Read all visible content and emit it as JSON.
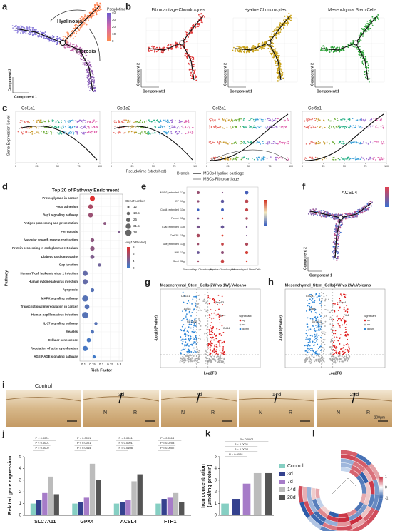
{
  "panel_letters": [
    "a",
    "b",
    "c",
    "d",
    "e",
    "f",
    "g",
    "h",
    "i",
    "j",
    "k",
    "l"
  ],
  "panels": {
    "a": {
      "annotations": [
        "Hyalinosis",
        "Fibrosis"
      ],
      "legend_title": "Pseudotime",
      "legend_ticks": [
        0,
        10,
        20,
        30,
        40
      ],
      "xlabel": "Component 1",
      "ylabel": "Component 2"
    },
    "b": {
      "titles": [
        "Fibrocartilage Chondrocytes",
        "Hyaline Chondrocytes",
        "Mesenchymal Stem Cells"
      ],
      "colors": [
        "#e03a3a",
        "#c9a21a",
        "#2fa33a"
      ],
      "xlabel": "Component 1",
      "ylabel": "Component 2"
    },
    "c": {
      "titles": [
        "Col1a1",
        "Col1a2",
        "Col2a1",
        "Col6a1"
      ],
      "ylabel": "Gene Expression Level",
      "xlabel": "Pseudotime (stretched)",
      "xticks": [
        0,
        25,
        50,
        75,
        100
      ],
      "legend_title": "Branch",
      "legend": [
        "MSCs-Hyaline cartilage",
        "MSCs-Fibrocartilage"
      ]
    },
    "e": {
      "rows": [
        "MAD2_extended (17g)",
        "EP (13g)",
        "Cnot4_extended (13g)",
        "Foxm1 (15g)",
        "E2f6_extended (13g)",
        "Creb3l1 (15g)",
        "Maff_extended (17g)",
        "Hlf4 (13g)",
        "Sox9 (38g)"
      ],
      "columns": [
        "Fibrocartilage Chondrocytes",
        "Hyaline Chondrocytes",
        "Mesenchymal Stem Cells"
      ]
    },
    "f": {
      "title": "ACSL4",
      "xlabel": "Component 1",
      "ylabel": "Component 2"
    },
    "g": {
      "title": "Mesenchymal_Stem_Cells(2W vs 1W).Volcano",
      "xlabel": "Log2FC",
      "ylabel": "-Log10(Pvalue)",
      "genes": [
        "Col1a1",
        "Mmp13",
        "Acsl4",
        "Gpx4",
        "Slc7a11",
        "Cd44"
      ],
      "legend": [
        "Significant",
        "up",
        "no",
        "down"
      ]
    },
    "h": {
      "title": "Mesenchymal_Stem_Cells(4W vs 2W).Volcano",
      "xlabel": "Log2FC",
      "ylabel": "-Log10(Pvalue)",
      "genes": [
        "Col2a1",
        "Gpx4",
        "Acsl4",
        "Fth1",
        "Slc7a11"
      ],
      "legend": [
        "Significant",
        "up",
        "no",
        "down"
      ]
    },
    "i": {
      "titles": [
        "Control",
        "3d",
        "7d",
        "14d",
        "28d"
      ],
      "marks": [
        "N",
        "R"
      ],
      "scale": "200μm"
    },
    "l": {
      "legend_ticks": [
        1,
        0,
        -1
      ]
    }
  },
  "chart_data": [
    {
      "type": "dotplot",
      "title": "Top 20 of Pathway Enrichment",
      "xlabel": "Rich Factor",
      "ylabel": "Pathway",
      "categories": [
        "Proteoglycans in cancer",
        "Focal adhesion",
        "Rap1 signaling pathway",
        "Antigen processing and presentation",
        "Ferroptosis",
        "Vascular smooth muscle contraction",
        "Protein processing in endoplasmic reticulum",
        "Diabetic cardiomyopathy",
        "Gap junction",
        "Human T-cell leukemia virus 1 infection",
        "Human cytomegalovirus infection",
        "Apoptosis",
        "MAPK signaling pathway",
        "Transcriptional misregulation in cancer",
        "Human papillomavirus infection",
        "IL-17 signaling pathway",
        "Measles",
        "Cellular senescence",
        "Regulation of actin cytoskeleton",
        "AGE-RAGE signaling pathway"
      ],
      "values": [
        0.15,
        0.14,
        0.14,
        0.22,
        0.3,
        0.15,
        0.15,
        0.15,
        0.19,
        0.11,
        0.11,
        0.15,
        0.11,
        0.12,
        0.11,
        0.17,
        0.15,
        0.13,
        0.11,
        0.16
      ],
      "sizes": [
        30,
        28,
        27,
        16,
        12,
        22,
        26,
        24,
        18,
        30,
        30,
        22,
        36,
        28,
        38,
        18,
        20,
        24,
        30,
        18
      ],
      "pvalues": [
        8,
        6,
        5.5,
        5,
        4.5,
        5,
        5,
        4.5,
        4,
        3.5,
        3.5,
        3,
        3,
        3,
        3,
        3,
        2.8,
        2.5,
        2.5,
        2.3
      ],
      "highlighted": [
        4,
        11
      ],
      "highlight_color": "#e02020",
      "xlim": [
        0.08,
        0.32
      ],
      "xticks": [
        0.1,
        0.15,
        0.2,
        0.25,
        0.3
      ],
      "size_legend_title": "GeneNumber",
      "size_legend": [
        12,
        18.5,
        25,
        31.5,
        38
      ],
      "color_legend_title": "-log10(Pvalue)",
      "color_legend": [
        2,
        4,
        6,
        8
      ],
      "color_low": "#3a7fd0",
      "color_high": "#e03030"
    },
    {
      "type": "grouped_bar",
      "ylabel": "Related gene expression",
      "categories": [
        "SLC7A11",
        "GPX4",
        "ACSL4",
        "FTH1"
      ],
      "series": [
        {
          "color": "#86cfc3",
          "values": [
            1.0,
            1.0,
            1.0,
            1.0
          ]
        },
        {
          "color": "#34418e",
          "values": [
            1.3,
            1.1,
            1.1,
            1.4
          ]
        },
        {
          "color": "#a67cc8",
          "values": [
            1.9,
            1.5,
            1.3,
            1.5
          ]
        },
        {
          "color": "#bcbcbc",
          "values": [
            3.3,
            4.4,
            2.9,
            1.9
          ]
        },
        {
          "color": "#555555",
          "values": [
            1.8,
            3.0,
            3.5,
            1.1
          ]
        }
      ],
      "ylim": [
        0,
        5
      ],
      "yticks": [
        0,
        1,
        2,
        3,
        4,
        5
      ],
      "annotations": [
        [
          "P < 0.0001",
          "P < 0.0001",
          "P = 0.0002"
        ],
        [
          "P < 0.0001",
          "P < 0.0001",
          "P = 0.0444"
        ],
        [
          "P < 0.0001",
          "P < 0.0001",
          "P = 0.0108"
        ],
        [
          "P = 0.0113",
          "P = 0.0203",
          "P = 0.0002"
        ]
      ]
    },
    {
      "type": "bar",
      "ylabel": [
        "Iron concentration",
        "(μmol/mg protein)"
      ],
      "series": [
        {
          "name": "Control",
          "color": "#86cfc3",
          "values": [
            1.0
          ]
        },
        {
          "name": "3d",
          "color": "#34418e",
          "values": [
            1.4
          ]
        },
        {
          "name": "7d",
          "color": "#a67cc8",
          "values": [
            2.7
          ]
        },
        {
          "name": "14d",
          "color": "#bcbcbc",
          "values": [
            3.6
          ]
        },
        {
          "name": "28d",
          "color": "#555555",
          "values": [
            3.6
          ]
        }
      ],
      "ylim": [
        0,
        5
      ],
      "yticks": [
        0,
        1,
        2,
        3,
        4,
        5
      ],
      "annotations": [
        "P < 0.0001",
        "P < 0.0001",
        "P = 0.0002",
        "P = 0.0028"
      ]
    }
  ]
}
